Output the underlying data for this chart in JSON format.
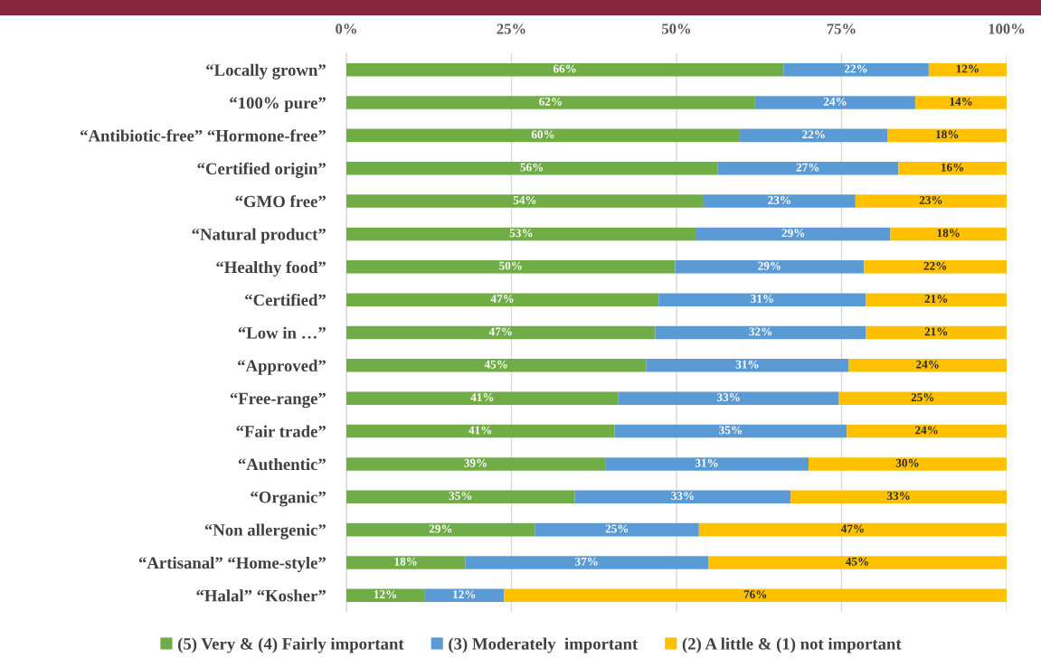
{
  "chart_data": {
    "type": "bar",
    "orientation": "horizontal",
    "stacked": true,
    "categories": [
      "“Locally grown”",
      "“100% pure”",
      "“Antibiotic-free” “Hormone-free”",
      "“Certified origin”",
      "“GMO free”",
      "“Natural product”",
      "“Healthy food”",
      "“Certified”",
      "“Low in …”",
      "“Approved”",
      "“Free-range”",
      "“Fair trade”",
      "“Authentic”",
      "“Organic”",
      "“Non allergenic”",
      "“Artisanal” “Home-style”",
      "“Halal” “Kosher”"
    ],
    "series": [
      {
        "name": "(5) Very & (4) Fairly important",
        "color": "#70ad47",
        "values": [
          66.2,
          61.9,
          59.6,
          56.2,
          54.1,
          53.0,
          49.8,
          47.3,
          46.8,
          45.4,
          41.2,
          40.6,
          39.2,
          34.6,
          28.6,
          18.0,
          11.8
        ],
        "value_labels": [
          "66%",
          "62%",
          "60%",
          "56%",
          "54%",
          "53%",
          "50%",
          "47%",
          "47%",
          "45%",
          "41%",
          "41%",
          "39%",
          "35%",
          "29%",
          "18%",
          "12%"
        ]
      },
      {
        "name": "(3) Moderately  important",
        "color": "#5b9bd5",
        "values": [
          22.0,
          24.3,
          22.4,
          27.4,
          23.0,
          29.4,
          28.6,
          31.4,
          31.9,
          30.7,
          33.4,
          35.2,
          30.8,
          32.7,
          24.8,
          36.8,
          12.1
        ],
        "value_labels": [
          "22%",
          "24%",
          "22%",
          "27%",
          "23%",
          "29%",
          "29%",
          "31%",
          "32%",
          "31%",
          "33%",
          "35%",
          "31%",
          "33%",
          "25%",
          "37%",
          "12%"
        ]
      },
      {
        "name": "(2) A little & (1) not important",
        "color": "#ffc000",
        "values": [
          11.8,
          13.8,
          18.0,
          16.4,
          22.9,
          17.6,
          21.6,
          21.3,
          21.3,
          23.9,
          25.4,
          24.2,
          30.0,
          32.7,
          46.6,
          45.2,
          76.1
        ],
        "value_labels": [
          "12%",
          "14%",
          "18%",
          "16%",
          "23%",
          "18%",
          "22%",
          "21%",
          "21%",
          "24%",
          "25%",
          "24%",
          "30%",
          "33%",
          "47%",
          "45%",
          "76%"
        ]
      }
    ],
    "xlim": [
      0,
      100
    ],
    "xticks": [
      {
        "value": 0,
        "label": "0%"
      },
      {
        "value": 25,
        "label": "25%"
      },
      {
        "value": 50,
        "label": "50%"
      },
      {
        "value": 75,
        "label": "75%"
      },
      {
        "value": 100,
        "label": "100%"
      }
    ],
    "grid": "x",
    "legend": "bottom"
  }
}
